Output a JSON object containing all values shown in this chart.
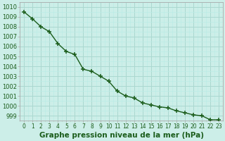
{
  "x": [
    0,
    1,
    2,
    3,
    4,
    5,
    6,
    7,
    8,
    9,
    10,
    11,
    12,
    13,
    14,
    15,
    16,
    17,
    18,
    19,
    20,
    21,
    22,
    23
  ],
  "y": [
    1009.5,
    1008.8,
    1008.0,
    1007.5,
    1006.3,
    1005.5,
    1005.2,
    1003.7,
    1003.5,
    1003.0,
    1002.5,
    1001.5,
    1001.0,
    1000.8,
    1000.3,
    1000.1,
    999.9,
    999.8,
    999.5,
    999.3,
    999.1,
    999.0,
    998.6,
    998.6
  ],
  "line_color": "#1a5c1a",
  "marker": "+",
  "marker_size": 4,
  "line_width": 1.0,
  "bg_color": "#cceee8",
  "grid_major_color": "#aad8d0",
  "grid_minor_color": "#bbece6",
  "title": "Graphe pression niveau de la mer (hPa)",
  "xlabel_ticks": [
    "0",
    "1",
    "2",
    "3",
    "4",
    "5",
    "6",
    "7",
    "8",
    "9",
    "10",
    "11",
    "12",
    "13",
    "14",
    "15",
    "16",
    "17",
    "18",
    "19",
    "20",
    "21",
    "22",
    "23"
  ],
  "yticks": [
    999,
    1000,
    1001,
    1002,
    1003,
    1004,
    1005,
    1006,
    1007,
    1008,
    1009,
    1010
  ],
  "xlim": [
    -0.5,
    23.5
  ],
  "ylim": [
    998.5,
    1010.5
  ],
  "title_fontsize": 7.5,
  "tick_fontsize": 6,
  "tick_color": "#1a5c1a",
  "spine_color": "#aaaaaa"
}
